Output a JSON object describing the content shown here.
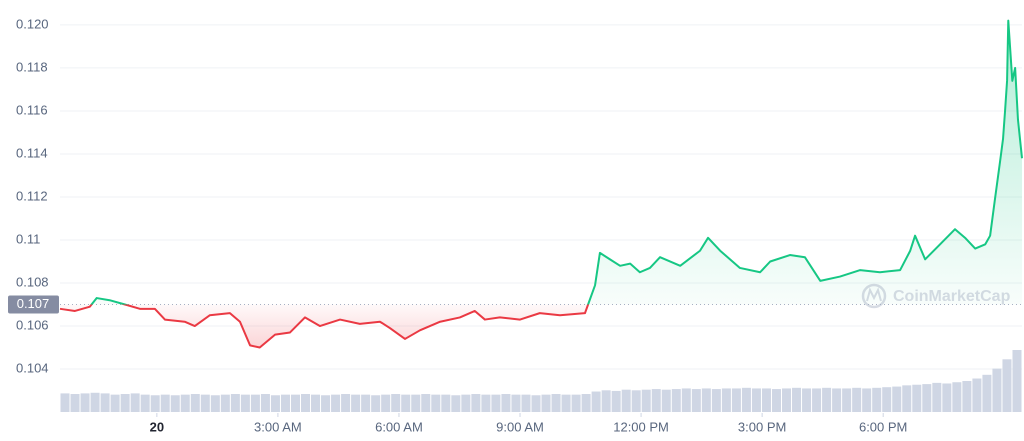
{
  "chart_data": {
    "type": "line",
    "x": [
      -2.4,
      -2.03,
      -1.66,
      -1.49,
      -1.17,
      -0.79,
      -0.42,
      -0.05,
      0.2,
      0.69,
      0.94,
      1.31,
      1.81,
      2.06,
      2.31,
      2.55,
      2.93,
      3.3,
      3.67,
      4.04,
      4.54,
      5.03,
      5.53,
      5.78,
      6.15,
      6.52,
      7.02,
      7.51,
      7.88,
      8.13,
      8.5,
      9.0,
      9.49,
      9.99,
      10.61,
      10.86,
      10.98,
      11.23,
      11.48,
      11.73,
      11.97,
      12.22,
      12.47,
      12.97,
      13.46,
      13.66,
      13.96,
      14.45,
      14.95,
      15.2,
      15.69,
      16.06,
      16.44,
      16.93,
      17.43,
      17.92,
      18.42,
      18.67,
      18.79,
      19.04,
      19.41,
      19.78,
      20.03,
      20.28,
      20.53,
      20.65,
      20.77,
      20.9,
      20.97,
      21.02,
      21.07,
      21.1,
      21.2,
      21.27,
      21.34,
      21.44
    ],
    "values": [
      0.1068,
      0.1067,
      0.1069,
      0.1073,
      0.1072,
      0.107,
      0.1068,
      0.1068,
      0.1063,
      0.1062,
      0.106,
      0.1065,
      0.1066,
      0.1062,
      0.1051,
      0.105,
      0.1056,
      0.1057,
      0.1064,
      0.106,
      0.1063,
      0.1061,
      0.1062,
      0.1059,
      0.1054,
      0.1058,
      0.1062,
      0.1064,
      0.1067,
      0.1063,
      0.1064,
      0.1063,
      0.1066,
      0.1065,
      0.1066,
      0.1079,
      0.1094,
      0.1091,
      0.1088,
      0.1089,
      0.1085,
      0.1087,
      0.1092,
      0.1088,
      0.1095,
      0.1101,
      0.1095,
      0.1087,
      0.1085,
      0.109,
      0.1093,
      0.1092,
      0.1081,
      0.1083,
      0.1086,
      0.1085,
      0.1086,
      0.1095,
      0.1102,
      0.1091,
      0.1098,
      0.1105,
      0.1101,
      0.1096,
      0.1098,
      0.1102,
      0.1119,
      0.1137,
      0.1147,
      0.116,
      0.1174,
      0.1202,
      0.1174,
      0.118,
      0.1156,
      0.1138
    ],
    "up_color": "#16c784",
    "down_color": "#ea3943",
    "baseline": 0.107,
    "xlim": [
      -2.4,
      21.44
    ],
    "ylim": [
      0.1027,
      0.1206
    ],
    "xticks": [
      {
        "value": 0,
        "label": "20"
      },
      {
        "value": 3,
        "label": "3:00 AM"
      },
      {
        "value": 6,
        "label": "6:00 AM"
      },
      {
        "value": 9,
        "label": "9:00 AM"
      },
      {
        "value": 12,
        "label": "12:00 PM"
      },
      {
        "value": 15,
        "label": "3:00 PM"
      },
      {
        "value": 18,
        "label": "6:00 PM"
      }
    ],
    "yticks": [
      0.104,
      0.106,
      0.108,
      0.11,
      0.112,
      0.114,
      0.116,
      0.118,
      {
        "value": 0.12,
        "label": "0.120"
      }
    ],
    "grid": true,
    "volume": {
      "color": "#cfd6e4",
      "values": [
        30,
        29,
        30,
        31,
        30,
        28,
        29,
        30,
        28,
        27,
        28,
        27,
        28,
        29,
        28,
        27,
        28,
        29,
        28,
        28,
        29,
        27,
        28,
        28,
        29,
        28,
        27,
        28,
        29,
        28,
        28,
        27,
        28,
        29,
        28,
        28,
        29,
        28,
        28,
        27,
        28,
        29,
        28,
        28,
        29,
        28,
        28,
        27,
        28,
        29,
        28,
        28,
        29,
        33,
        35,
        34,
        36,
        35,
        36,
        37,
        36,
        37,
        38,
        37,
        38,
        37,
        38,
        38,
        39,
        38,
        38,
        37,
        38,
        39,
        38,
        38,
        39,
        38,
        38,
        39,
        38,
        39,
        40,
        41,
        43,
        44,
        45,
        47,
        46,
        48,
        50,
        54,
        60,
        70,
        85,
        100
      ]
    },
    "watermark": "CoinMarketCap"
  }
}
